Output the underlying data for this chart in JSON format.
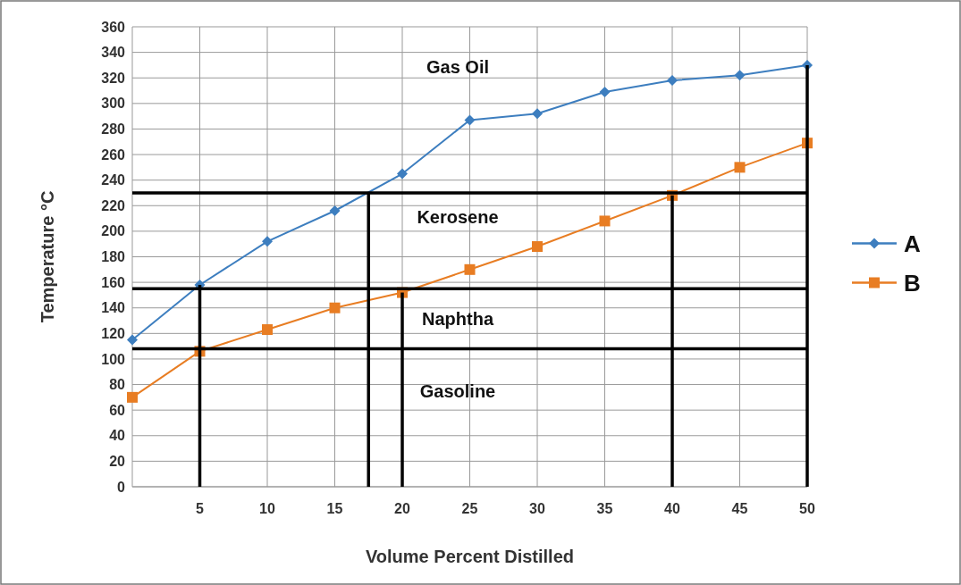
{
  "chart_data": {
    "type": "line",
    "xlabel": "Volume Percent Distilled",
    "ylabel": "Temperature °C",
    "x": [
      0,
      5,
      10,
      15,
      20,
      25,
      30,
      35,
      40,
      45,
      50
    ],
    "series": [
      {
        "name": "A",
        "color": "#3d7ebf",
        "marker": "diamond",
        "values": [
          115,
          158,
          192,
          216,
          245,
          287,
          292,
          309,
          318,
          322,
          330
        ]
      },
      {
        "name": "B",
        "color": "#e87d23",
        "marker": "square",
        "values": [
          70,
          106,
          123,
          140,
          152,
          170,
          188,
          208,
          228,
          250,
          269
        ]
      },
      {
        "type": "line",
        "color": "#000000",
        "marker": "none",
        "x": [
          5,
          5
        ],
        "values": [
          0,
          158
        ]
      },
      {
        "type": "line",
        "color": "#000000",
        "marker": "none",
        "x": [
          17.5,
          17.5
        ],
        "values": [
          0,
          230
        ]
      },
      {
        "type": "line",
        "color": "#000000",
        "marker": "none",
        "x": [
          20,
          20
        ],
        "values": [
          0,
          152
        ]
      },
      {
        "type": "line",
        "color": "#000000",
        "marker": "none",
        "x": [
          40,
          40
        ],
        "values": [
          0,
          228
        ]
      },
      {
        "type": "line",
        "color": "#000000",
        "marker": "none",
        "x": [
          50,
          50
        ],
        "values": [
          0,
          330
        ]
      },
      {
        "type": "line",
        "color": "#000000",
        "marker": "none",
        "x": [
          0,
          50
        ],
        "values": [
          230,
          230
        ]
      },
      {
        "type": "line",
        "color": "#000000",
        "marker": "none",
        "x": [
          0,
          50
        ],
        "values": [
          155,
          155
        ]
      },
      {
        "type": "line",
        "color": "#000000",
        "marker": "none",
        "x": [
          0,
          50
        ],
        "values": [
          108,
          108
        ]
      }
    ],
    "annotations": [
      "Gas Oil",
      "Kerosene",
      "Naphtha",
      "Gasoline"
    ],
    "xlim": [
      0,
      50
    ],
    "xticks": [
      5,
      10,
      15,
      20,
      25,
      30,
      35,
      40,
      45,
      50
    ],
    "ylim": [
      0,
      360
    ],
    "yticks": [
      0,
      20,
      40,
      60,
      80,
      100,
      120,
      140,
      160,
      180,
      200,
      220,
      240,
      260,
      280,
      300,
      320,
      340,
      360
    ],
    "grid": true,
    "legend": "right",
    "line_style": "solid"
  }
}
